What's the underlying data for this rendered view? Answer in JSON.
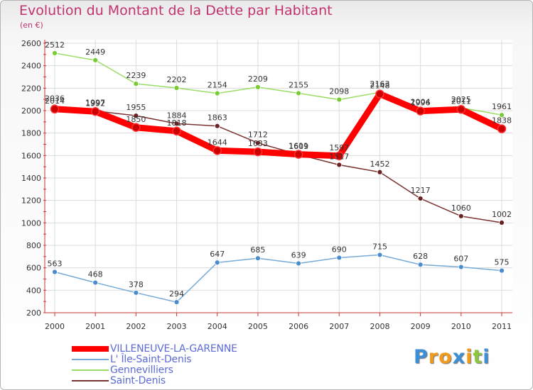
{
  "chart_data": {
    "type": "line",
    "title": "Evolution du Montant de la Dette par Habitant",
    "subtitle": "(en €)",
    "x": [
      "2000",
      "2001",
      "2002",
      "2003",
      "2004",
      "2005",
      "2006",
      "2007",
      "2008",
      "2009",
      "2010",
      "2011"
    ],
    "ylim": [
      200,
      2600
    ],
    "yticks": [
      "200",
      "400",
      "600",
      "800",
      "1000",
      "1200",
      "1400",
      "1600",
      "1800",
      "2000",
      "2200",
      "2400",
      "2600"
    ],
    "grid": true,
    "legend_position": "bottom-left",
    "series": [
      {
        "name": "VILLENEUVE-LA-GARENNE",
        "values": [
          2014,
          1992,
          1850,
          1818,
          1644,
          1633,
          1611,
          1597,
          2148,
          1996,
          2011,
          1838
        ],
        "labels": [
          "2014",
          "1992",
          "1850",
          "1818",
          "1644",
          "1633",
          "1611",
          "1597",
          "2148",
          "1996",
          "2011",
          "1838"
        ],
        "color": "#ff0000",
        "width": 9,
        "marker": "#cc0000"
      },
      {
        "name": "L' Île-Saint-Denis",
        "values": [
          563,
          468,
          378,
          294,
          647,
          685,
          639,
          690,
          715,
          628,
          607,
          575
        ],
        "labels": [
          "563",
          "468",
          "378",
          "294",
          "647",
          "685",
          "639",
          "690",
          "715",
          "628",
          "607",
          "575"
        ],
        "color": "#77aad6",
        "width": 1.5,
        "marker": "#4a8ccc"
      },
      {
        "name": "Gennevilliers",
        "values": [
          2512,
          2449,
          2239,
          2202,
          2154,
          2209,
          2155,
          2098,
          2163,
          2004,
          2025,
          1961
        ],
        "labels": [
          "2512",
          "2449",
          "2239",
          "2202",
          "2154",
          "2209",
          "2155",
          "2098",
          "2163",
          "2004",
          "2025",
          "1961"
        ],
        "color": "#99dd66",
        "width": 1.5,
        "marker": "#77cc33"
      },
      {
        "name": "Saint-Denis",
        "values": [
          2036,
          1997,
          1955,
          1884,
          1863,
          1712,
          1609,
          1517,
          1452,
          1217,
          1060,
          1002
        ],
        "labels": [
          "2036",
          "1997",
          "1955",
          "1884",
          "1863",
          "1712",
          "1609",
          "1517",
          "1452",
          "1217",
          "1060",
          "1002"
        ],
        "color": "#7a3333",
        "width": 1.5,
        "marker": "#6a2222"
      }
    ]
  },
  "logo": {
    "letters": [
      "P",
      "r",
      "o",
      "x",
      "i",
      "t",
      "i"
    ],
    "colors": [
      "#3d8fd8",
      "#f29a1a",
      "#f29a1a",
      "#3d8fd8",
      "#f29a1a",
      "#8cc63f",
      "#3d8fd8"
    ]
  }
}
